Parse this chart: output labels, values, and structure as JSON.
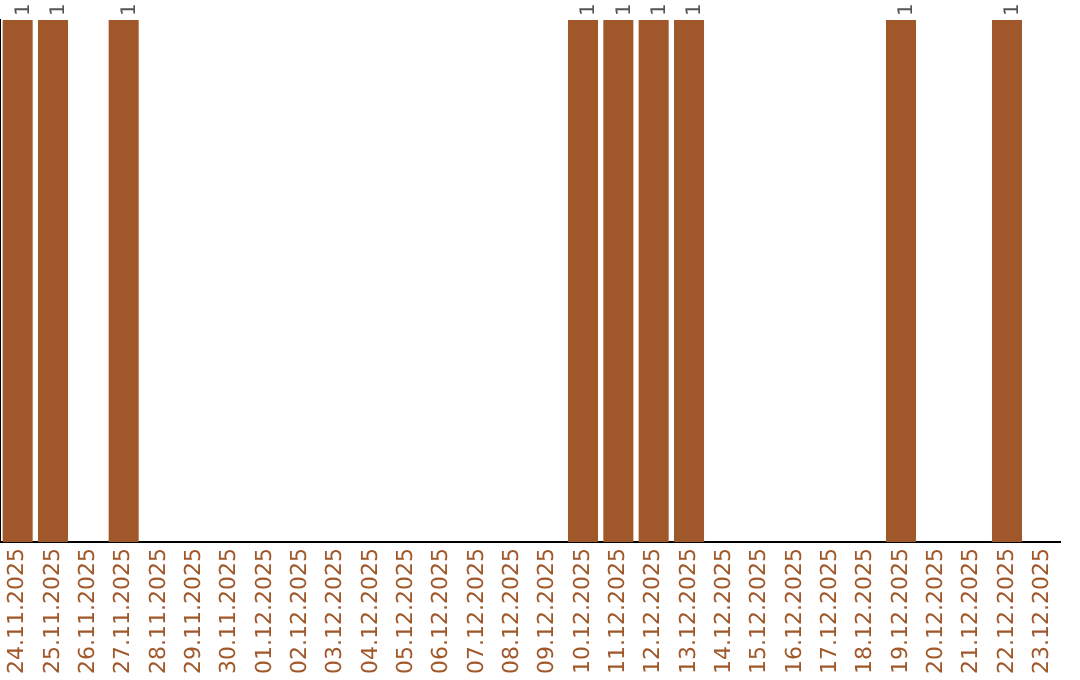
{
  "chart_data": {
    "type": "bar",
    "categories": [
      "24.11.2025",
      "25.11.2025",
      "26.11.2025",
      "27.11.2025",
      "28.11.2025",
      "29.11.2025",
      "30.11.2025",
      "01.12.2025",
      "02.12.2025",
      "03.12.2025",
      "04.12.2025",
      "05.12.2025",
      "06.12.2025",
      "07.12.2025",
      "08.12.2025",
      "09.12.2025",
      "10.12.2025",
      "11.12.2025",
      "12.12.2025",
      "13.12.2025",
      "14.12.2025",
      "15.12.2025",
      "16.12.2025",
      "17.12.2025",
      "18.12.2025",
      "19.12.2025",
      "20.12.2025",
      "21.12.2025",
      "22.12.2025",
      "23.12.2025"
    ],
    "values": [
      1,
      1,
      0,
      1,
      0,
      0,
      0,
      0,
      0,
      0,
      0,
      0,
      0,
      0,
      0,
      0,
      1,
      1,
      1,
      1,
      0,
      0,
      0,
      0,
      0,
      1,
      0,
      0,
      1,
      0
    ],
    "value_labels": [
      "1",
      "1",
      null,
      "1",
      null,
      null,
      null,
      null,
      null,
      null,
      null,
      null,
      null,
      null,
      null,
      null,
      "1",
      "1",
      "1",
      "1",
      null,
      null,
      null,
      null,
      null,
      "1",
      null,
      null,
      "1",
      null
    ],
    "color": "#a0582a",
    "ylim": [
      0,
      1
    ],
    "tick_labels": "x",
    "grid": false,
    "legend": false
  }
}
